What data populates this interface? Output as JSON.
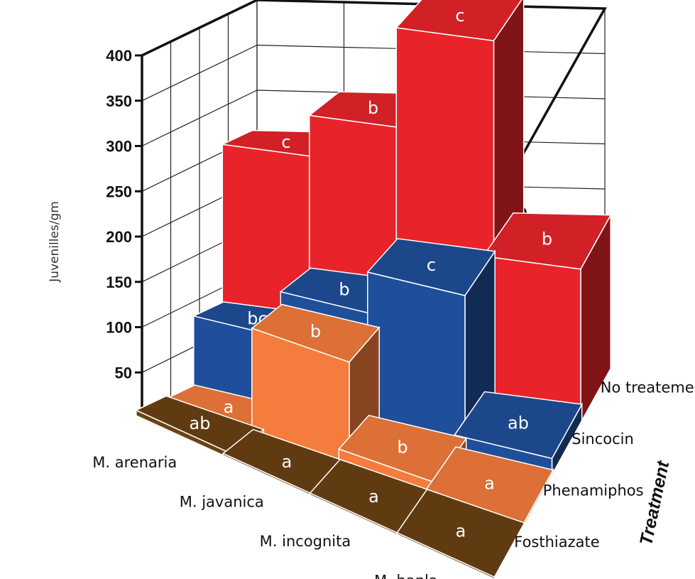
{
  "chart_data": {
    "type": "bar3d",
    "title": "",
    "ylabel": "Juvenilles/gm",
    "zlabel": "Treatment",
    "ylim": [
      0,
      400
    ],
    "yticks": [
      50,
      100,
      150,
      200,
      250,
      300,
      350,
      400
    ],
    "categories": [
      "M. arenaria",
      "M. javanica",
      "M. incognita",
      "M. hapla"
    ],
    "series": [
      {
        "name": "No treatement",
        "color": "#e8242a",
        "values": [
          255,
          300,
          410,
          170
        ],
        "labels": [
          "c",
          "b",
          "c",
          "b"
        ]
      },
      {
        "name": "Sincocin",
        "color": "#1f4f9a",
        "values": [
          80,
          130,
          175,
          18
        ],
        "labels": [
          "bc",
          "b",
          "c",
          "ab"
        ]
      },
      {
        "name": "Phenamiphos",
        "color": "#f47c3c",
        "values": [
          3,
          115,
          15,
          3
        ],
        "labels": [
          "a",
          "b",
          "b",
          "a"
        ]
      },
      {
        "name": "Fosthiazate",
        "color": "#6b4214",
        "values": [
          6,
          2,
          2,
          2
        ],
        "labels": [
          "ab",
          "a",
          "a",
          "a"
        ]
      }
    ]
  }
}
